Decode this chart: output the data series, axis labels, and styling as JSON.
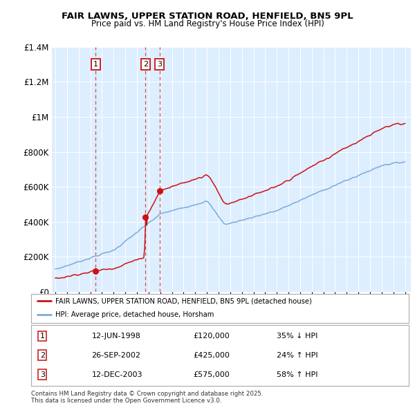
{
  "title": "FAIR LAWNS, UPPER STATION ROAD, HENFIELD, BN5 9PL",
  "subtitle": "Price paid vs. HM Land Registry's House Price Index (HPI)",
  "transactions": [
    {
      "label": "1",
      "date": "12-JUN-1998",
      "price": 120000,
      "year": 1998.45,
      "pct": "35%",
      "dir": "↓"
    },
    {
      "label": "2",
      "date": "26-SEP-2002",
      "price": 425000,
      "year": 2002.73,
      "pct": "24%",
      "dir": "↑"
    },
    {
      "label": "3",
      "date": "12-DEC-2003",
      "price": 575000,
      "year": 2003.94,
      "pct": "58%",
      "dir": "↑"
    }
  ],
  "legend_property": "FAIR LAWNS, UPPER STATION ROAD, HENFIELD, BN5 9PL (detached house)",
  "legend_hpi": "HPI: Average price, detached house, Horsham",
  "footnote1": "Contains HM Land Registry data © Crown copyright and database right 2025.",
  "footnote2": "This data is licensed under the Open Government Licence v3.0.",
  "hpi_color": "#7aabdc",
  "property_color": "#cc1111",
  "vline_color": "#cc3333",
  "background_color": "#ddeeff",
  "ylim": [
    0,
    1400000
  ],
  "yticks": [
    0,
    200000,
    400000,
    600000,
    800000,
    1000000,
    1200000,
    1400000
  ],
  "xlim_start": 1994.7,
  "xlim_end": 2025.5
}
